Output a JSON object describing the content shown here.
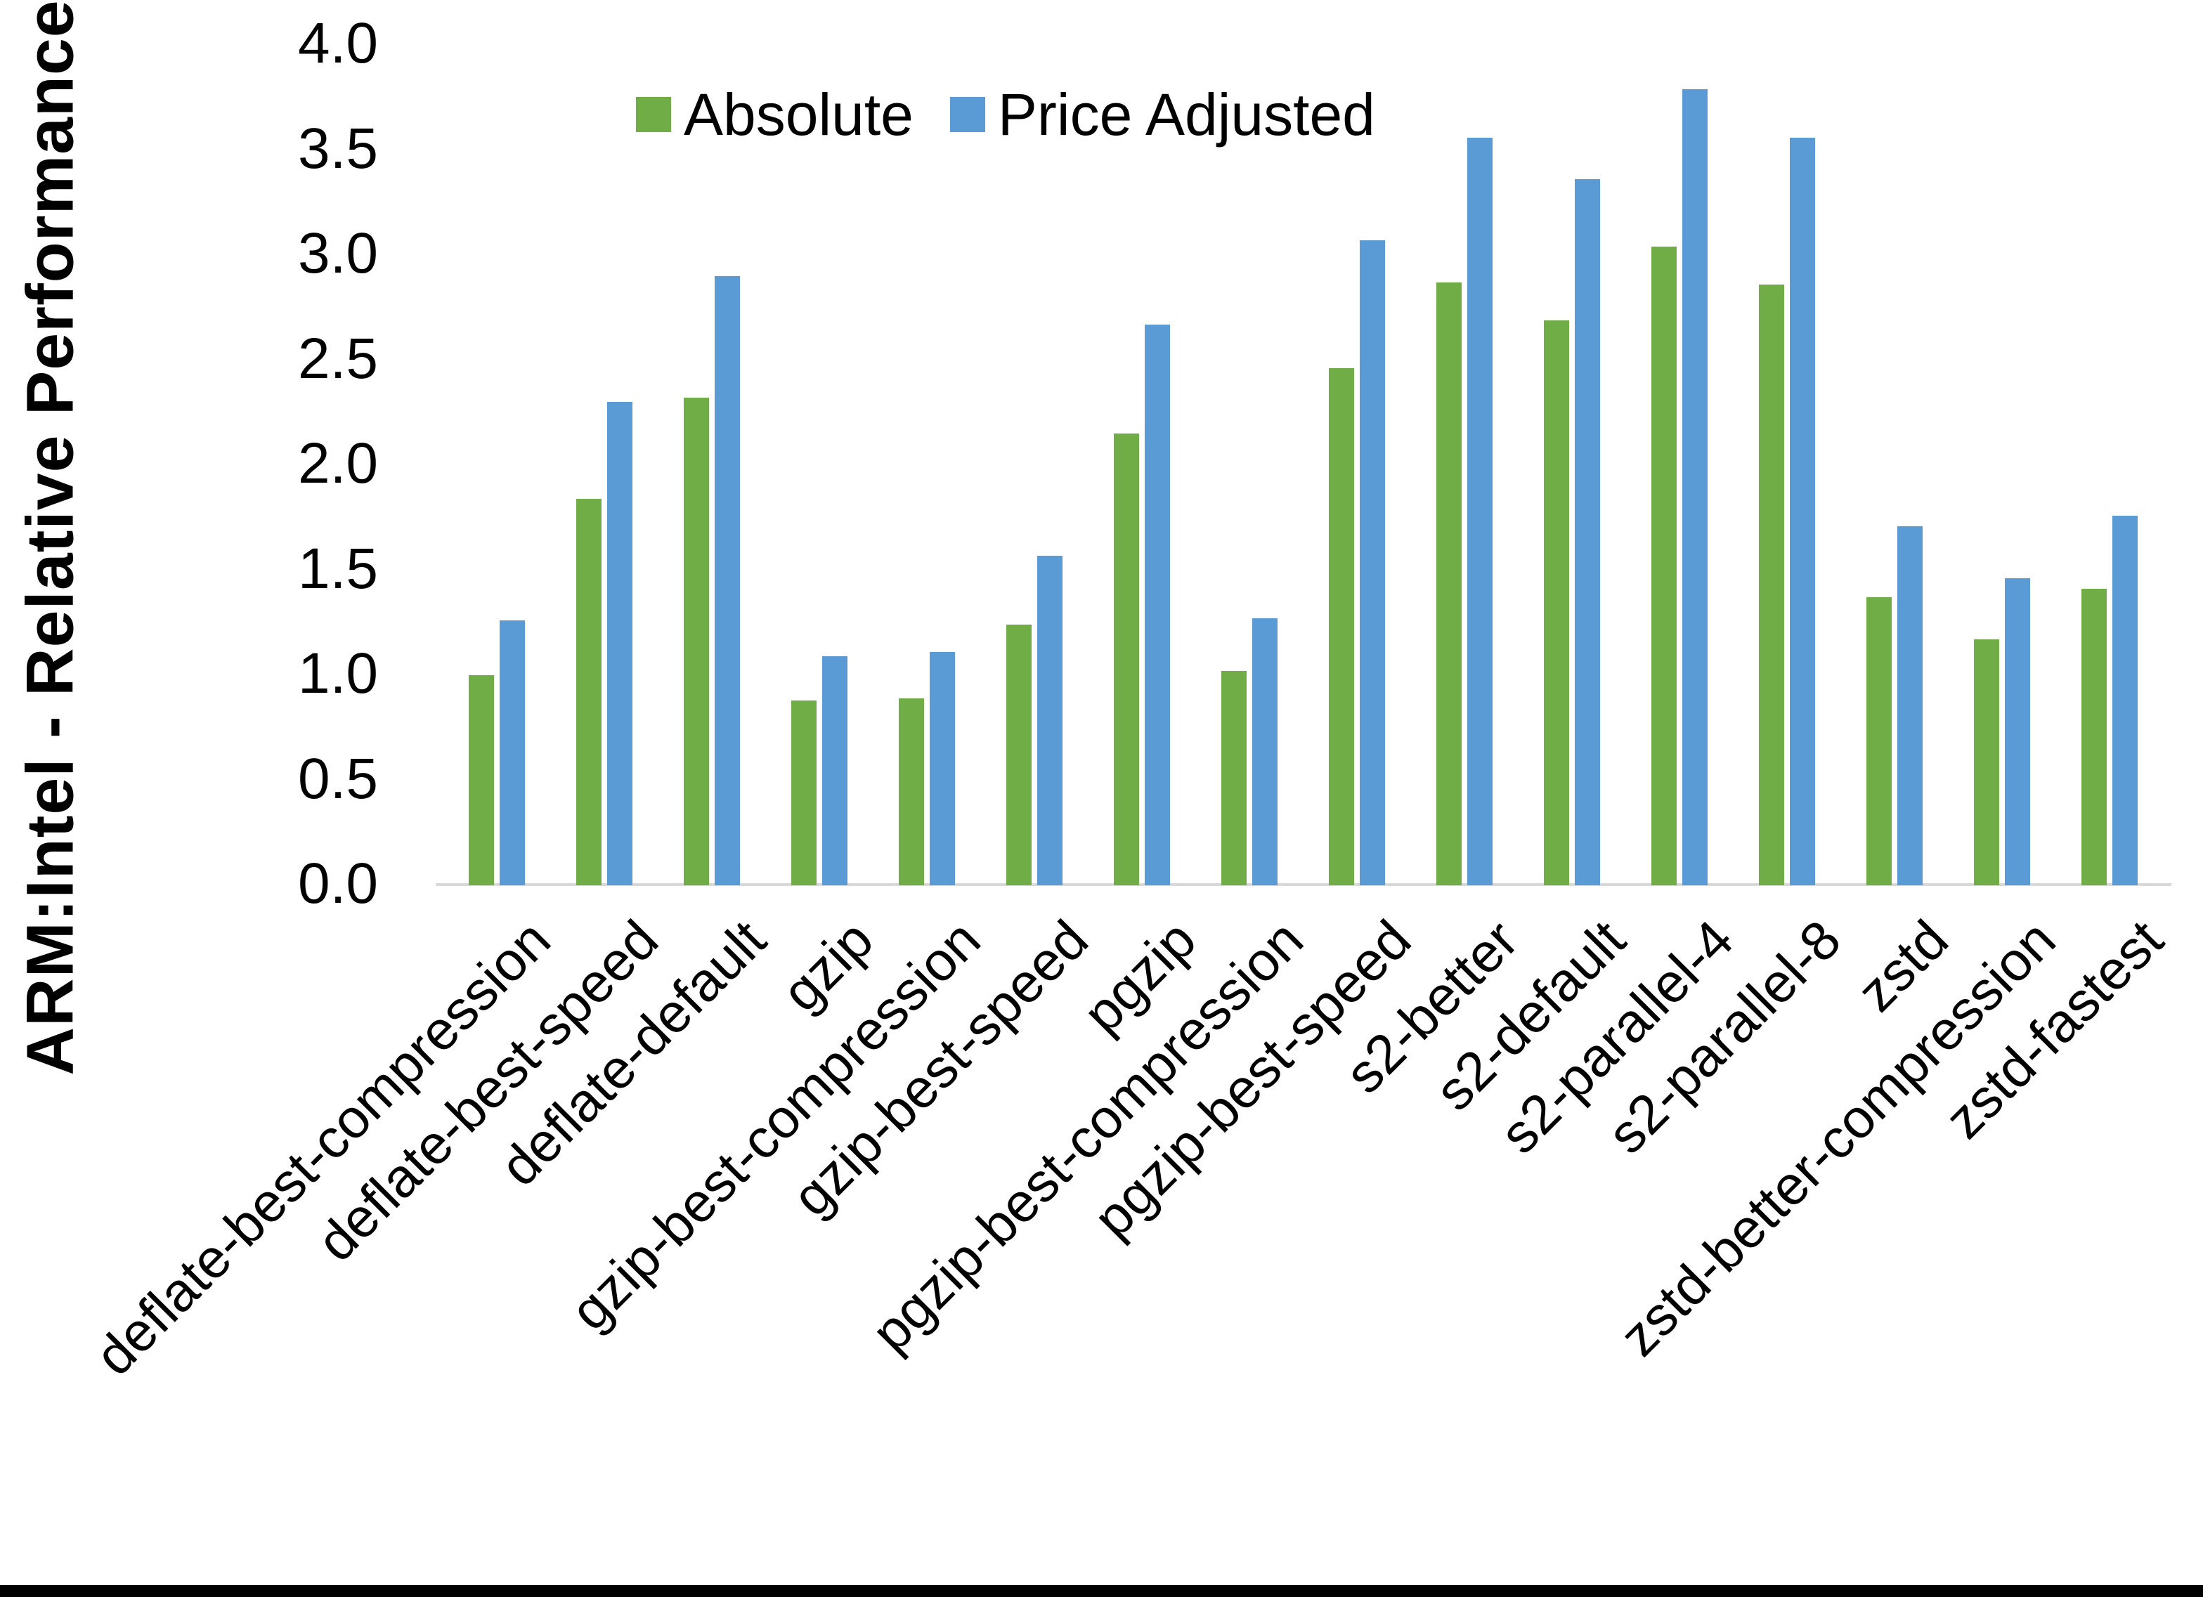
{
  "chart_data": {
    "type": "bar",
    "title": "",
    "xlabel": "",
    "ylabel": "ARM:Intel - Relative Performance",
    "ylim": [
      0.0,
      4.0
    ],
    "ytick_step": 0.5,
    "yticks": [
      "0.0",
      "0.5",
      "1.0",
      "1.5",
      "2.0",
      "2.5",
      "3.0",
      "3.5",
      "4.0"
    ],
    "grid": false,
    "legend_position": "top-center",
    "categories": [
      "deflate-best-compression",
      "deflate-best-speed",
      "deflate-default",
      "gzip",
      "gzip-best-compression",
      "gzip-best-speed",
      "pgzip",
      "pgzip-best-compression",
      "pgzip-best-speed",
      "s2-better",
      "s2-default",
      "s2-parallel-4",
      "s2-parallel-8",
      "zstd",
      "zstd-better-compression",
      "zstd-fastest"
    ],
    "series": [
      {
        "name": "Absolute",
        "color": "#70AD47",
        "values": [
          1.0,
          1.84,
          2.32,
          0.88,
          0.89,
          1.24,
          2.15,
          1.02,
          2.46,
          2.87,
          2.69,
          3.04,
          2.86,
          1.37,
          1.17,
          1.41
        ]
      },
      {
        "name": "Price Adjusted",
        "color": "#5B9BD5",
        "values": [
          1.26,
          2.3,
          2.9,
          1.09,
          1.11,
          1.57,
          2.67,
          1.27,
          3.07,
          3.56,
          3.36,
          3.79,
          3.56,
          1.71,
          1.46,
          1.76
        ]
      }
    ]
  },
  "colors": {
    "background": "#FFFFFF",
    "axis_line": "#D9D9D9",
    "text": "#000000",
    "bottom_bar": "#000000"
  }
}
